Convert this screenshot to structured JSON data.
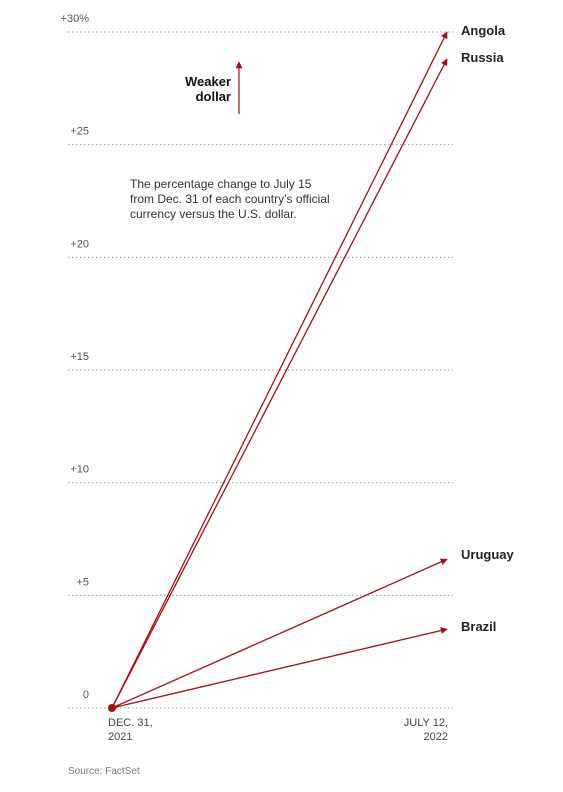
{
  "chart_data": {
    "type": "line",
    "annotation": {
      "weaker_line1": "Weaker",
      "weaker_line2": "dollar",
      "note_lines": [
        "The percentage change to July 15",
        "from Dec. 31 of each country’s official",
        "currency versus the U.S. dollar."
      ]
    },
    "x_labels": [
      {
        "line1": "DEC. 31,",
        "line2": "2021"
      },
      {
        "line1": "JULY 12,",
        "line2": "2022"
      }
    ],
    "y_ticks": [
      {
        "value": 0,
        "label": "0"
      },
      {
        "value": 5,
        "label": "+5"
      },
      {
        "value": 10,
        "label": "+10"
      },
      {
        "value": 15,
        "label": "+15"
      },
      {
        "value": 20,
        "label": "+20"
      },
      {
        "value": 25,
        "label": "+25"
      },
      {
        "value": 30,
        "label": "+30%"
      }
    ],
    "ylim": [
      0,
      30
    ],
    "series": [
      {
        "name": "Angola",
        "start": 0,
        "end": 30.0
      },
      {
        "name": "Russia",
        "start": 0,
        "end": 28.8
      },
      {
        "name": "Uruguay",
        "start": 0,
        "end": 6.6
      },
      {
        "name": "Brazil",
        "start": 0,
        "end": 3.5
      }
    ],
    "colors": {
      "line": "#a1101a",
      "grid": "#999999"
    },
    "source": "Source: FactSet"
  }
}
